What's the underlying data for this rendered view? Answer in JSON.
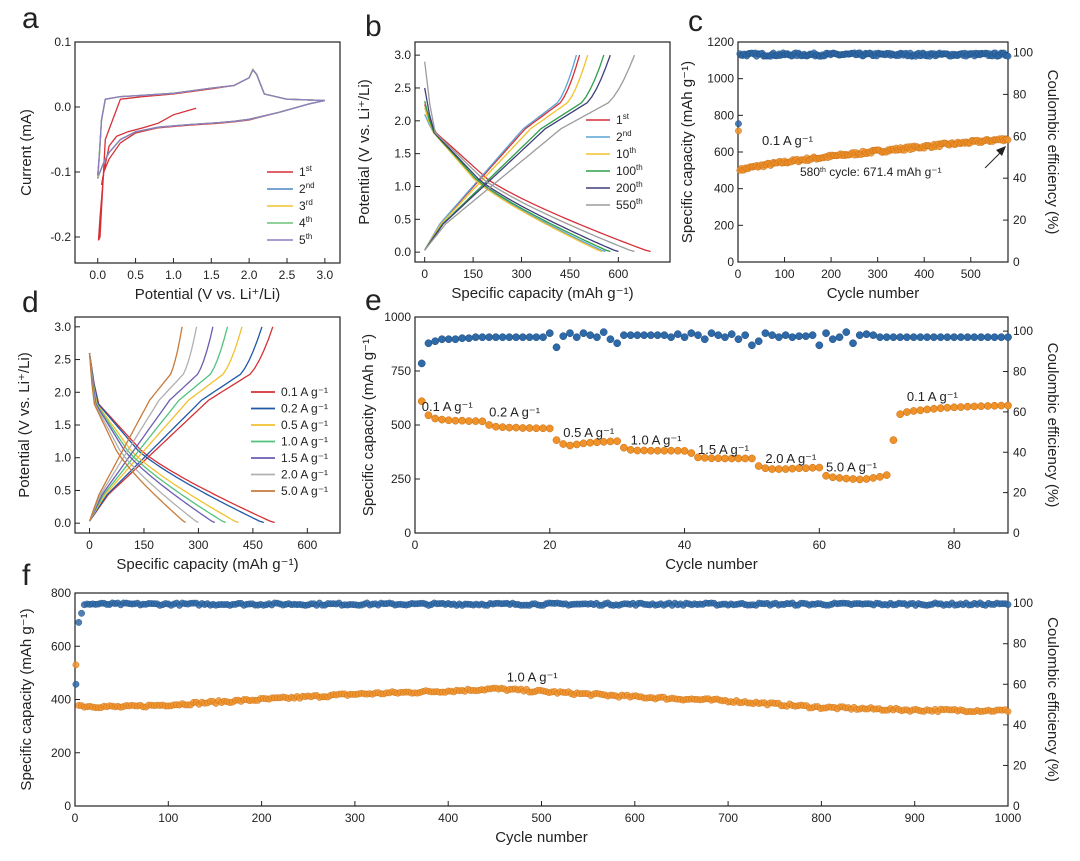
{
  "figure": {
    "panels": [
      {
        "letter": "a",
        "id": "a"
      },
      {
        "letter": "b",
        "id": "b"
      },
      {
        "letter": "c",
        "id": "c"
      },
      {
        "letter": "d",
        "id": "d"
      },
      {
        "letter": "e",
        "id": "e"
      },
      {
        "letter": "f",
        "id": "f"
      }
    ]
  },
  "colors": {
    "c1": "#d62f36",
    "c2": "#4a86c2",
    "c3": "#f1c232",
    "c4": "#6cc47a",
    "c5": "#8e7cc3",
    "b_1": "#d62f36",
    "b_2": "#5ba3d9",
    "b_3": "#f2c12e",
    "b_4": "#2e9e48",
    "b_5": "#3d3e7a",
    "b_6": "#9b9b9b",
    "d_1": "#d62f36",
    "d_2": "#1f5aa6",
    "d_3": "#f2c12e",
    "d_4": "#52c27e",
    "d_5": "#6a5db0",
    "d_6": "#b0b0b0",
    "d_7": "#c87a3a",
    "orange": "#f0922a",
    "blue": "#2f6aa8"
  },
  "chart_data": [
    {
      "id": "a",
      "type": "line",
      "xlabel": "Potential (V vs. Li⁺/Li)",
      "ylabel": "Current (mA)",
      "xlim": [
        -0.3,
        3.2
      ],
      "ylim": [
        -0.24,
        0.1
      ],
      "xticks": [
        0.0,
        0.5,
        1.0,
        1.5,
        2.0,
        2.5,
        3.0
      ],
      "xtick_labels": [
        "0.0",
        "0.5",
        "1.0",
        "1.5",
        "2.0",
        "2.5",
        "3.0"
      ],
      "yticks": [
        -0.2,
        -0.1,
        0.0,
        0.1
      ],
      "ytick_labels": [
        "-0.2",
        "-0.1",
        "0.0",
        "0.1"
      ],
      "legend_position": "bottom-right",
      "series": [
        {
          "name": "1st",
          "sup": "st",
          "base": "1",
          "color_key": "c1",
          "x": [
            1.3,
            1.0,
            0.8,
            0.6,
            0.4,
            0.25,
            0.15,
            0.08,
            0.03,
            0.01,
            0.03,
            0.1,
            0.3,
            0.6,
            1.0,
            1.5,
            1.8,
            2.0,
            2.05,
            2.1,
            2.2,
            2.5,
            3.0,
            2.8,
            2.4,
            2.0,
            1.8,
            1.6,
            1.2,
            0.8,
            0.5,
            0.3,
            0.15,
            0.08,
            0.05
          ],
          "y": [
            -0.002,
            -0.012,
            -0.025,
            -0.032,
            -0.038,
            -0.045,
            -0.06,
            -0.1,
            -0.17,
            -0.205,
            -0.2,
            -0.05,
            0.012,
            0.016,
            0.02,
            0.028,
            0.033,
            0.045,
            0.057,
            0.05,
            0.02,
            0.012,
            0.01,
            0.005,
            -0.008,
            -0.02,
            -0.023,
            -0.025,
            -0.028,
            -0.032,
            -0.04,
            -0.055,
            -0.08,
            -0.1,
            -0.12
          ]
        },
        {
          "name": "2nd",
          "sup": "nd",
          "base": "2",
          "color_key": "c2",
          "x": [
            0.0,
            0.02,
            0.05,
            0.1,
            0.3,
            0.6,
            1.0,
            1.5,
            1.8,
            2.0,
            2.05,
            2.1,
            2.2,
            2.5,
            3.0,
            2.8,
            2.4,
            2.0,
            1.8,
            1.6,
            1.2,
            0.8,
            0.5,
            0.3,
            0.15,
            0.08,
            0.03,
            0.0
          ],
          "y": [
            -0.11,
            -0.08,
            -0.02,
            0.012,
            0.016,
            0.018,
            0.021,
            0.029,
            0.033,
            0.045,
            0.058,
            0.05,
            0.02,
            0.012,
            0.01,
            0.005,
            -0.008,
            -0.019,
            -0.022,
            -0.024,
            -0.027,
            -0.031,
            -0.038,
            -0.05,
            -0.07,
            -0.085,
            -0.1,
            -0.11
          ]
        },
        {
          "name": "3rd",
          "sup": "rd",
          "base": "3",
          "color_key": "c3",
          "x": [
            0.0,
            0.02,
            0.05,
            0.1,
            0.3,
            0.6,
            1.0,
            1.5,
            1.8,
            2.0,
            2.05,
            2.1,
            2.2,
            2.5,
            3.0,
            2.8,
            2.4,
            2.0,
            1.8,
            1.6,
            1.2,
            0.8,
            0.5,
            0.3,
            0.15,
            0.08,
            0.03,
            0.0
          ],
          "y": [
            -0.108,
            -0.078,
            -0.02,
            0.012,
            0.016,
            0.018,
            0.021,
            0.029,
            0.033,
            0.045,
            0.058,
            0.05,
            0.02,
            0.012,
            0.01,
            0.005,
            -0.008,
            -0.019,
            -0.022,
            -0.024,
            -0.027,
            -0.031,
            -0.038,
            -0.05,
            -0.07,
            -0.085,
            -0.1,
            -0.108
          ]
        },
        {
          "name": "4th",
          "sup": "th",
          "base": "4",
          "color_key": "c4",
          "x": [
            0.0,
            0.02,
            0.05,
            0.1,
            0.3,
            0.6,
            1.0,
            1.5,
            1.8,
            2.0,
            2.05,
            2.1,
            2.2,
            2.5,
            3.0,
            2.8,
            2.4,
            2.0,
            1.8,
            1.6,
            1.2,
            0.8,
            0.5,
            0.3,
            0.15,
            0.08,
            0.03,
            0.0
          ],
          "y": [
            -0.106,
            -0.077,
            -0.02,
            0.012,
            0.016,
            0.018,
            0.021,
            0.029,
            0.033,
            0.045,
            0.057,
            0.05,
            0.02,
            0.012,
            0.01,
            0.005,
            -0.008,
            -0.019,
            -0.022,
            -0.024,
            -0.027,
            -0.031,
            -0.038,
            -0.05,
            -0.07,
            -0.085,
            -0.1,
            -0.106
          ]
        },
        {
          "name": "5th",
          "sup": "th",
          "base": "5",
          "color_key": "c5",
          "x": [
            0.0,
            0.02,
            0.05,
            0.1,
            0.3,
            0.6,
            1.0,
            1.5,
            1.8,
            2.0,
            2.05,
            2.1,
            2.2,
            2.5,
            3.0,
            2.8,
            2.4,
            2.0,
            1.8,
            1.6,
            1.2,
            0.8,
            0.5,
            0.3,
            0.15,
            0.08,
            0.03,
            0.0
          ],
          "y": [
            -0.105,
            -0.076,
            -0.02,
            0.012,
            0.016,
            0.018,
            0.021,
            0.029,
            0.033,
            0.045,
            0.057,
            0.05,
            0.02,
            0.012,
            0.01,
            0.005,
            -0.008,
            -0.019,
            -0.022,
            -0.024,
            -0.027,
            -0.031,
            -0.038,
            -0.05,
            -0.07,
            -0.085,
            -0.1,
            -0.105
          ]
        }
      ]
    },
    {
      "id": "b",
      "type": "line",
      "xlabel": "Specific capacity (mAh g⁻¹)",
      "ylabel": "Potential (V vs. Li⁺/Li)",
      "xlim": [
        -30,
        760
      ],
      "ylim": [
        -0.15,
        3.2
      ],
      "xticks": [
        0,
        150,
        300,
        450,
        600
      ],
      "xtick_labels": [
        "0",
        "150",
        "300",
        "450",
        "600"
      ],
      "yticks": [
        0.0,
        0.5,
        1.0,
        1.5,
        2.0,
        2.5,
        3.0
      ],
      "ytick_labels": [
        "0.0",
        "0.5",
        "1.0",
        "1.5",
        "2.0",
        "2.5",
        "3.0"
      ],
      "legend_position": "right",
      "series": [
        {
          "name": "1st",
          "base": "1",
          "sup": "st",
          "color_key": "b_1",
          "discharge_cap": 700,
          "charge_cap": 480,
          "d_start": 2.25
        },
        {
          "name": "2nd",
          "base": "2",
          "sup": "nd",
          "color_key": "b_2",
          "discharge_cap": 560,
          "charge_cap": 470,
          "d_start": 2.1
        },
        {
          "name": "10th",
          "base": "10",
          "sup": "th",
          "color_key": "b_3",
          "discharge_cap": 550,
          "charge_cap": 505,
          "d_start": 2.2
        },
        {
          "name": "100th",
          "base": "100",
          "sup": "th",
          "color_key": "b_4",
          "discharge_cap": 575,
          "charge_cap": 555,
          "d_start": 2.3
        },
        {
          "name": "200th",
          "base": "200",
          "sup": "th",
          "color_key": "b_5",
          "discharge_cap": 600,
          "charge_cap": 575,
          "d_start": 2.5
        },
        {
          "name": "550th",
          "base": "550",
          "sup": "th",
          "color_key": "b_6",
          "discharge_cap": 650,
          "charge_cap": 650,
          "d_start": 2.9
        }
      ]
    },
    {
      "id": "c",
      "type": "scatter",
      "xlabel": "Cycle number",
      "ylabel": "Specific capacity (mAh g⁻¹)",
      "y2label": "Coulombic efficiency (%)",
      "xlim": [
        0,
        580
      ],
      "ylim": [
        0,
        1200
      ],
      "y2lim": [
        0,
        105
      ],
      "xticks": [
        0,
        100,
        200,
        300,
        400,
        500
      ],
      "yticks": [
        0,
        200,
        400,
        600,
        800,
        1000,
        1200
      ],
      "y2ticks": [
        0,
        20,
        40,
        60,
        80,
        100
      ],
      "capacity_start": 500,
      "capacity_end": 671.4,
      "capacity_first": 715,
      "ce_first": 66,
      "ce_level": 99.0,
      "annotations": {
        "rate": "0.1 A g⁻¹",
        "cycle_base": "580",
        "cycle_sup": "th",
        "cycle_rest": " cycle: 671.4 mAh g⁻¹"
      }
    },
    {
      "id": "d",
      "type": "line",
      "xlabel": "Specific capacity (mAh g⁻¹)",
      "ylabel": "Potential (V vs. Li⁺/Li)",
      "xlim": [
        -40,
        690
      ],
      "ylim": [
        -0.15,
        3.15
      ],
      "xticks": [
        0,
        150,
        300,
        450,
        600
      ],
      "yticks": [
        0.0,
        0.5,
        1.0,
        1.5,
        2.0,
        2.5,
        3.0
      ],
      "ytick_labels": [
        "0.0",
        "0.5",
        "1.0",
        "1.5",
        "2.0",
        "2.5",
        "3.0"
      ],
      "legend_position": "right",
      "series": [
        {
          "name": "0.1 A g⁻¹",
          "color_key": "d_1",
          "discharge_cap": 510,
          "charge_cap": 505
        },
        {
          "name": "0.2 A g⁻¹",
          "color_key": "d_2",
          "discharge_cap": 480,
          "charge_cap": 475
        },
        {
          "name": "0.5 A g⁻¹",
          "color_key": "d_3",
          "discharge_cap": 410,
          "charge_cap": 420
        },
        {
          "name": "1.0 A g⁻¹",
          "color_key": "d_4",
          "discharge_cap": 375,
          "charge_cap": 380
        },
        {
          "name": "1.5 A g⁻¹",
          "color_key": "d_5",
          "discharge_cap": 345,
          "charge_cap": 340
        },
        {
          "name": "2.0 A g⁻¹",
          "color_key": "d_6",
          "discharge_cap": 300,
          "charge_cap": 295
        },
        {
          "name": "5.0 A g⁻¹",
          "color_key": "d_7",
          "discharge_cap": 265,
          "charge_cap": 255
        }
      ]
    },
    {
      "id": "e",
      "type": "scatter",
      "xlabel": "Cycle number",
      "ylabel": "Specific capacity (mAh g⁻¹)",
      "y2label": "Coulombic efficiency (%)",
      "xlim": [
        0,
        88
      ],
      "ylim": [
        0,
        1000
      ],
      "y2lim": [
        0,
        107
      ],
      "xticks": [
        0,
        20,
        40,
        60,
        80
      ],
      "yticks": [
        0,
        250,
        500,
        750,
        1000
      ],
      "y2ticks": [
        0,
        20,
        40,
        60,
        80,
        100
      ],
      "capacity": [
        610,
        545,
        530,
        525,
        522,
        520,
        520,
        518,
        518,
        517,
        500,
        492,
        490,
        488,
        488,
        486,
        486,
        485,
        485,
        484,
        430,
        412,
        405,
        410,
        415,
        418,
        420,
        422,
        424,
        425,
        395,
        385,
        382,
        382,
        381,
        381,
        381,
        381,
        381,
        380,
        370,
        350,
        348,
        346,
        346,
        345,
        345,
        345,
        345,
        345,
        310,
        300,
        296,
        296,
        296,
        298,
        300,
        300,
        302,
        303,
        265,
        258,
        255,
        252,
        250,
        248,
        250,
        255,
        260,
        268,
        430,
        550,
        560,
        565,
        568,
        572,
        575,
        578,
        580,
        582,
        583,
        585,
        586,
        587,
        588,
        589,
        590,
        590
      ],
      "ce": [
        84,
        94,
        95,
        96,
        96,
        96,
        96.5,
        96.5,
        97,
        97,
        97,
        97,
        97,
        97,
        97,
        97,
        97,
        97,
        97,
        99,
        92,
        97.5,
        99,
        97,
        99,
        98,
        97,
        99.5,
        96,
        94,
        98,
        98,
        98,
        98,
        98,
        98,
        98,
        97,
        98.5,
        97,
        99,
        98,
        96,
        99,
        98,
        97,
        98.5,
        96,
        98,
        93,
        95,
        99,
        98,
        97,
        98,
        97,
        97.5,
        97.5,
        98,
        93,
        99,
        96,
        97,
        99.5,
        94,
        98,
        98.5,
        98,
        97,
        97,
        97,
        97,
        97,
        97,
        97,
        97,
        97,
        97,
        97,
        97,
        97,
        97,
        97,
        97,
        97,
        97,
        97,
        97
      ],
      "annotations": [
        {
          "text": "0.1 A g⁻¹",
          "x": 1,
          "y": 565
        },
        {
          "text": "0.2 A g⁻¹",
          "x": 11,
          "y": 540
        },
        {
          "text": "0.5 A g⁻¹",
          "x": 22,
          "y": 445
        },
        {
          "text": "1.0 A g⁻¹",
          "x": 32,
          "y": 410
        },
        {
          "text": "1.5 A g⁻¹",
          "x": 42,
          "y": 365
        },
        {
          "text": "2.0 A g⁻¹",
          "x": 52,
          "y": 325
        },
        {
          "text": "5.0 A g⁻¹",
          "x": 61,
          "y": 285
        },
        {
          "text": "0.1 A g⁻¹",
          "x": 73,
          "y": 610
        }
      ]
    },
    {
      "id": "f",
      "type": "scatter",
      "xlabel": "Cycle number",
      "ylabel": "Specific capacity (mAh g⁻¹)",
      "y2label": "Coulombic efficiency (%)",
      "xlim": [
        0,
        1000
      ],
      "ylim": [
        0,
        800
      ],
      "y2lim": [
        0,
        105
      ],
      "xticks": [
        0,
        100,
        200,
        300,
        400,
        500,
        600,
        700,
        800,
        900,
        1000
      ],
      "yticks": [
        0,
        200,
        400,
        600,
        800
      ],
      "y2ticks": [
        0,
        20,
        40,
        60,
        80,
        100
      ],
      "capacity_profile_x": [
        0,
        10,
        50,
        100,
        200,
        300,
        400,
        450,
        500,
        600,
        700,
        800,
        900,
        1000
      ],
      "capacity_profile_y": [
        380,
        375,
        372,
        380,
        400,
        420,
        432,
        440,
        430,
        410,
        395,
        370,
        360,
        358
      ],
      "capacity_first": 530,
      "ce_first": 60,
      "ce_level": 99.5,
      "annotation": {
        "text": "1.0 A g⁻¹",
        "x": 490,
        "y": 468
      }
    }
  ]
}
